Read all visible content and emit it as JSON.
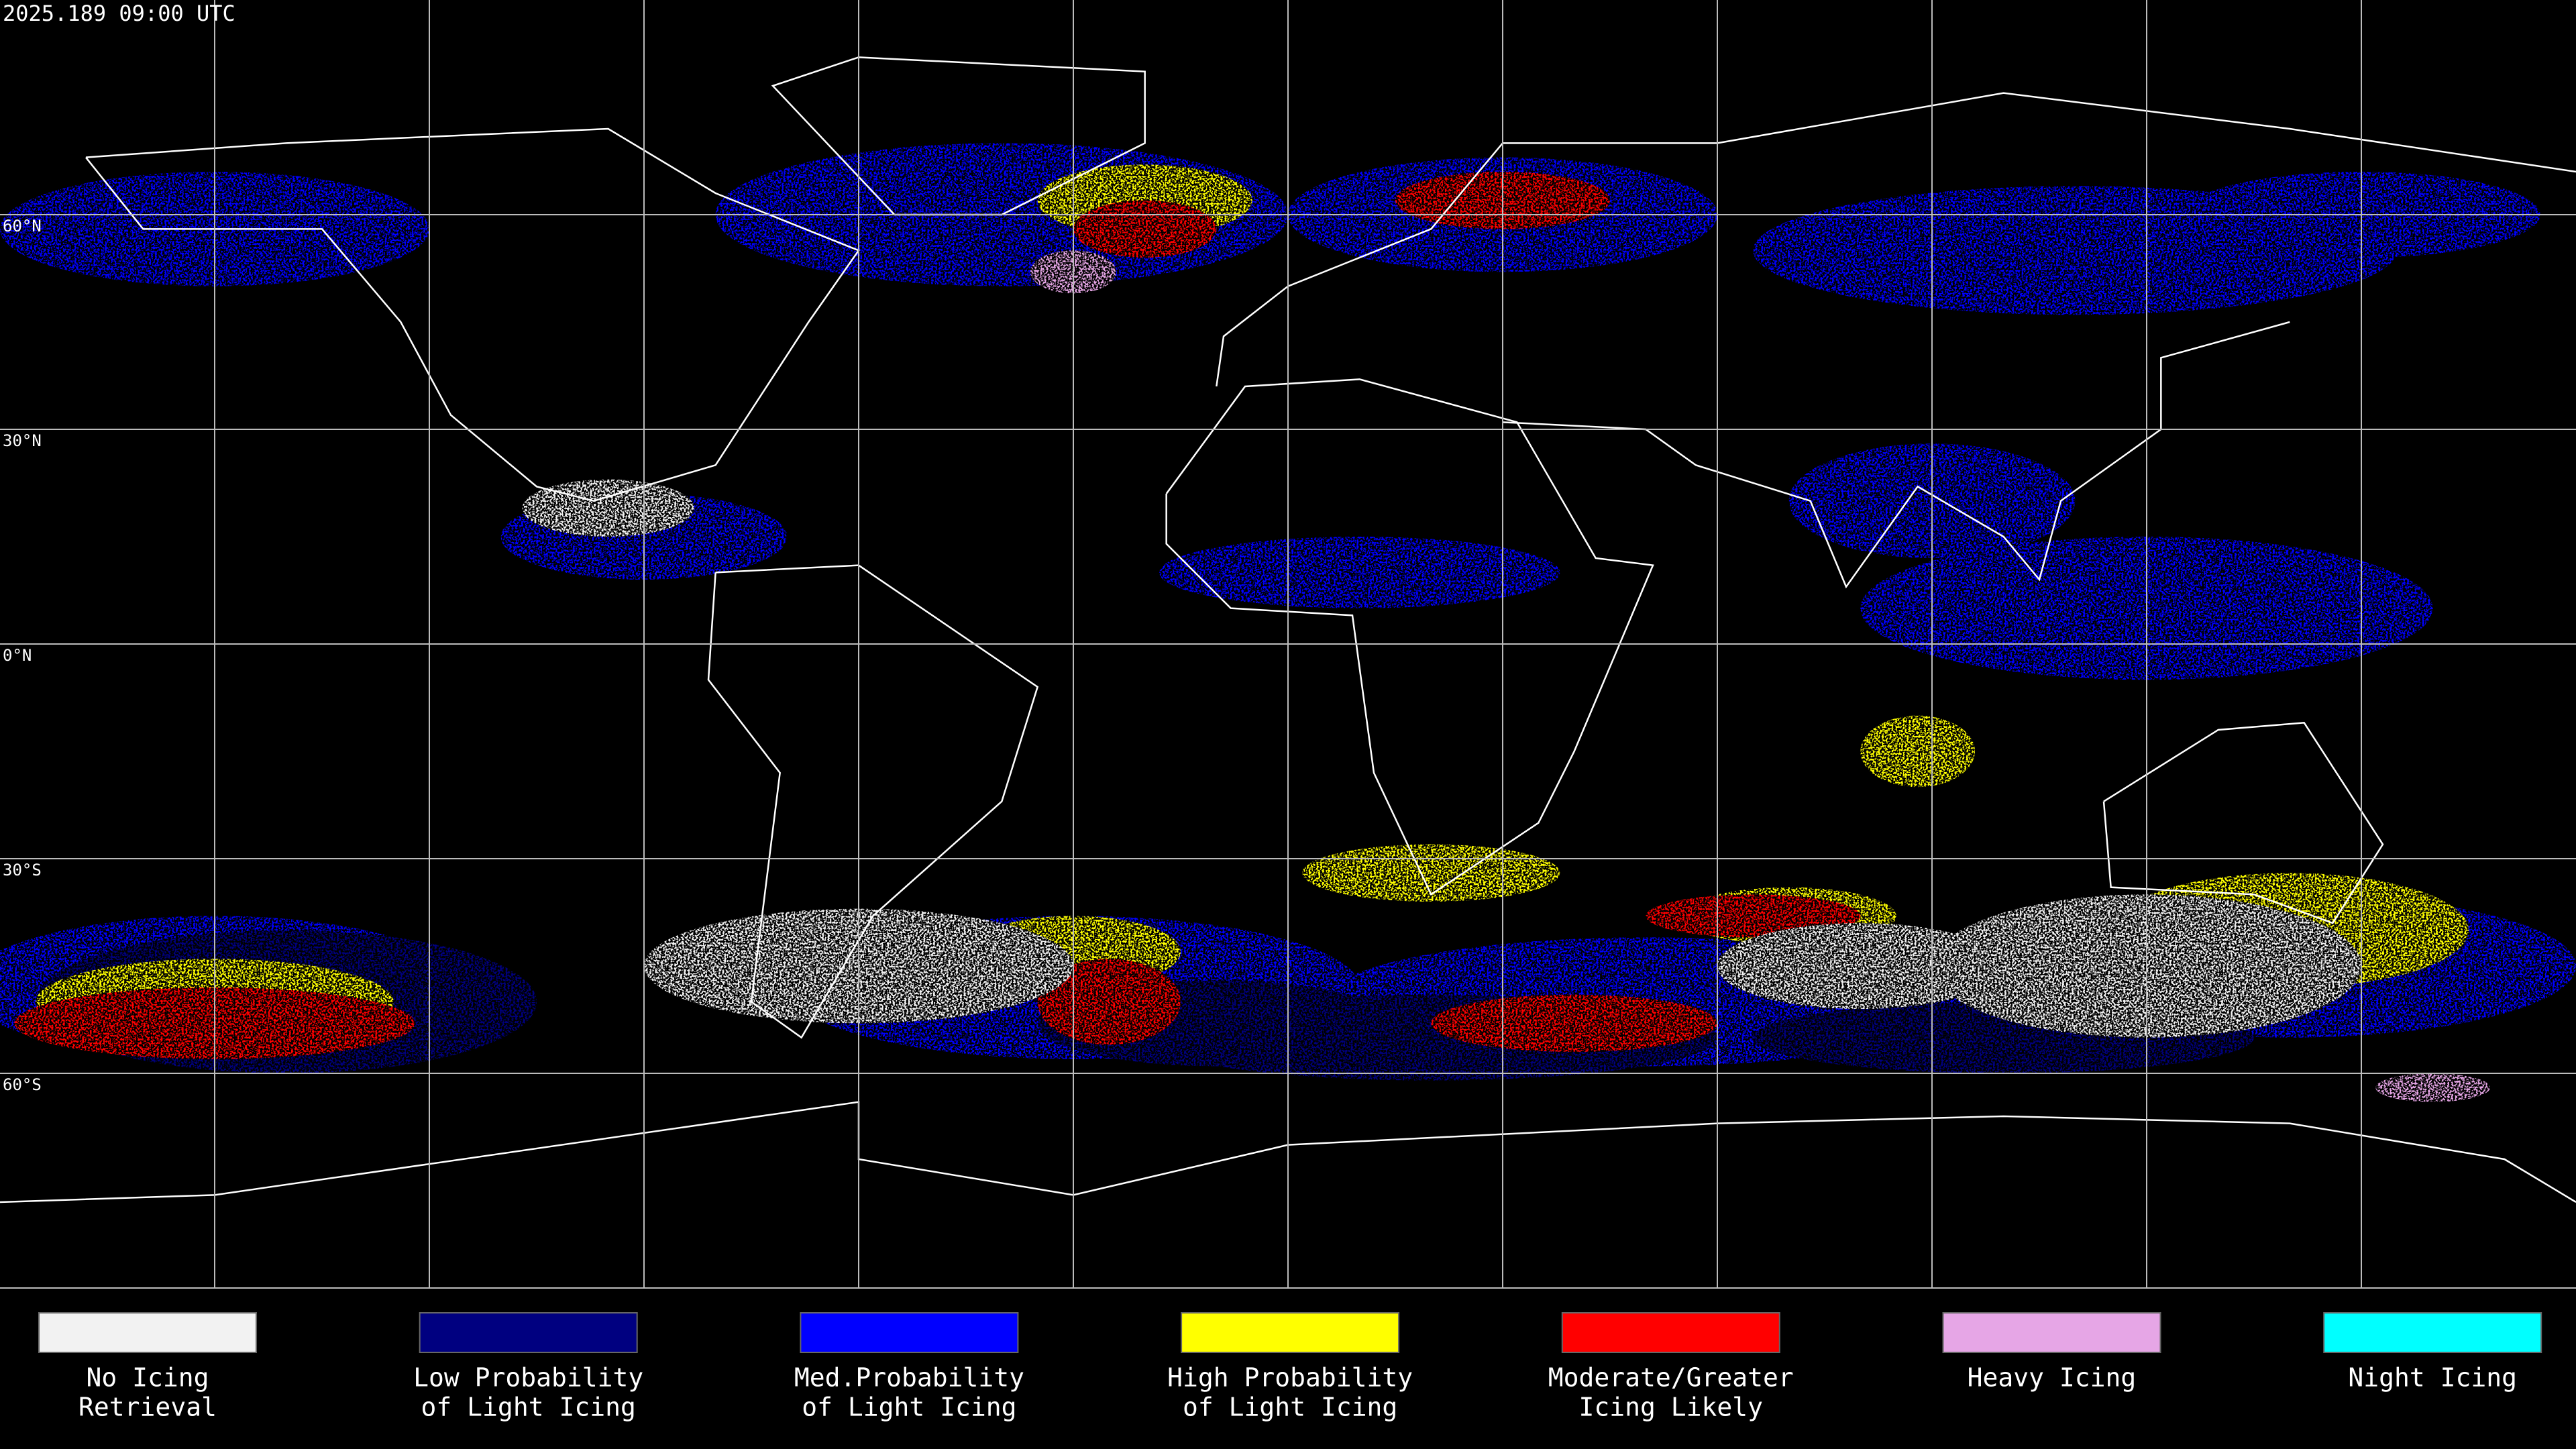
{
  "header": {
    "timestamp": "2025.189 09:00 UTC"
  },
  "map": {
    "latitude_labels": [
      "60°N",
      "30°N",
      "0°N",
      "30°S",
      "60°S"
    ]
  },
  "legend": {
    "items": [
      {
        "lines": [
          "No Icing",
          "Retrieval"
        ],
        "color": "#f2f2f2"
      },
      {
        "lines": [
          "Low Probability",
          "of Light Icing"
        ],
        "color": "#000080"
      },
      {
        "lines": [
          "Med.Probability",
          "of Light Icing"
        ],
        "color": "#0000ff"
      },
      {
        "lines": [
          "High Probability",
          "of Light Icing"
        ],
        "color": "#ffff00"
      },
      {
        "lines": [
          "Moderate/Greater",
          "Icing Likely"
        ],
        "color": "#ff0000"
      },
      {
        "lines": [
          "Heavy Icing"
        ],
        "color": "#e6a6e6"
      },
      {
        "lines": [
          "Night Icing"
        ],
        "color": "#00ffff"
      }
    ]
  }
}
